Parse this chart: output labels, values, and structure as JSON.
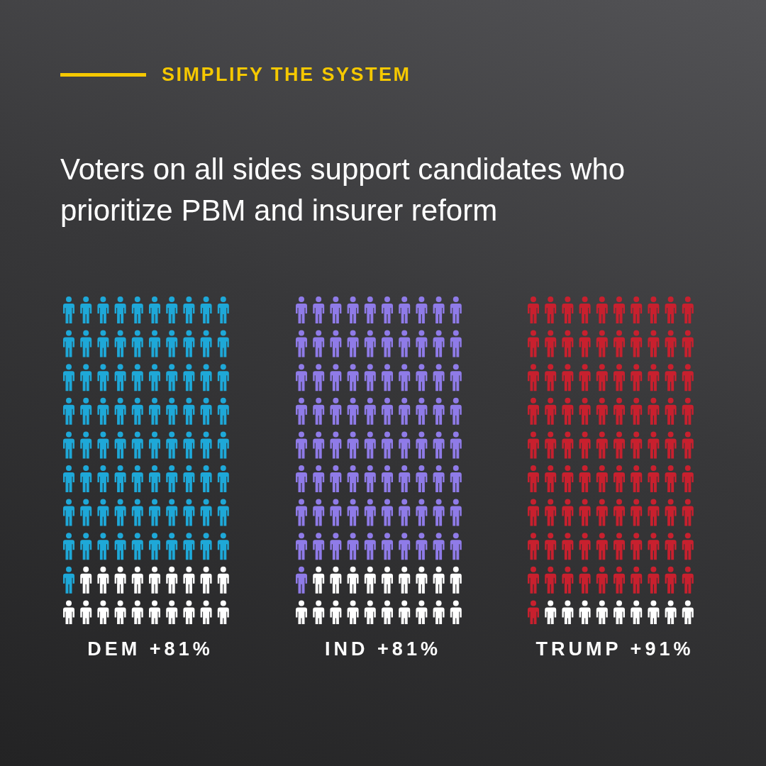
{
  "chart_data": {
    "type": "other",
    "subtitle": "SIMPLIFY THE SYSTEM",
    "title": "Voters on all sides support candidates who prioritize PBM and insurer reform",
    "categories": [
      "DEM",
      "IND",
      "TRUMP"
    ],
    "values": [
      81,
      81,
      91
    ],
    "value_labels": [
      "+81%",
      "+81%",
      "+91%"
    ],
    "colors": [
      "#1ea8d8",
      "#8f7be8",
      "#c8202e"
    ]
  }
}
